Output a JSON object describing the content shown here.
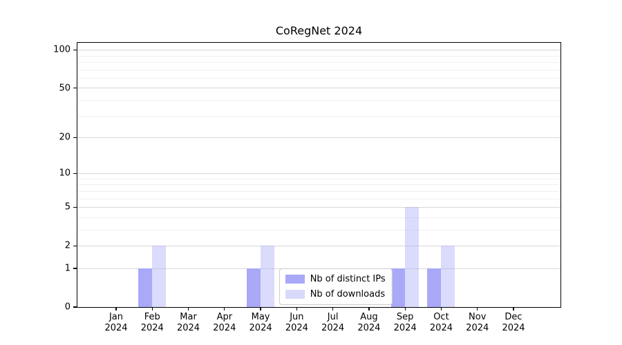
{
  "chart_data": {
    "type": "bar",
    "title": "CoRegNet 2024",
    "categories": [
      "Jan 2024",
      "Feb 2024",
      "Mar 2024",
      "Apr 2024",
      "May 2024",
      "Jun 2024",
      "Jul 2024",
      "Aug 2024",
      "Sep 2024",
      "Oct 2024",
      "Nov 2024",
      "Dec 2024"
    ],
    "series": [
      {
        "name": "Nb of distinct IPs",
        "color": "#a9a9f7",
        "values": [
          0,
          1,
          0,
          0,
          1,
          0,
          0,
          0,
          1,
          1,
          0,
          0
        ]
      },
      {
        "name": "Nb of downloads",
        "color": "rgba(169,169,247,0.42)",
        "legend_color": "#d9d9f9",
        "values": [
          0,
          2,
          0,
          0,
          2,
          0,
          0,
          0,
          5,
          2,
          0,
          0
        ]
      }
    ],
    "xlabel": "",
    "ylabel": "",
    "yscale": "log1p",
    "ylim": [
      0,
      114
    ],
    "yticks": [
      0,
      1,
      2,
      5,
      10,
      20,
      50,
      100
    ],
    "minor_gridlines": [
      3,
      4,
      6,
      7,
      8,
      9,
      30,
      40,
      60,
      70,
      80,
      90
    ],
    "grid": "on",
    "legend_position": "lower center",
    "frame_color": "#000000",
    "major_grid_color": "#d7d7d7",
    "minor_grid_color": "#efefef"
  }
}
